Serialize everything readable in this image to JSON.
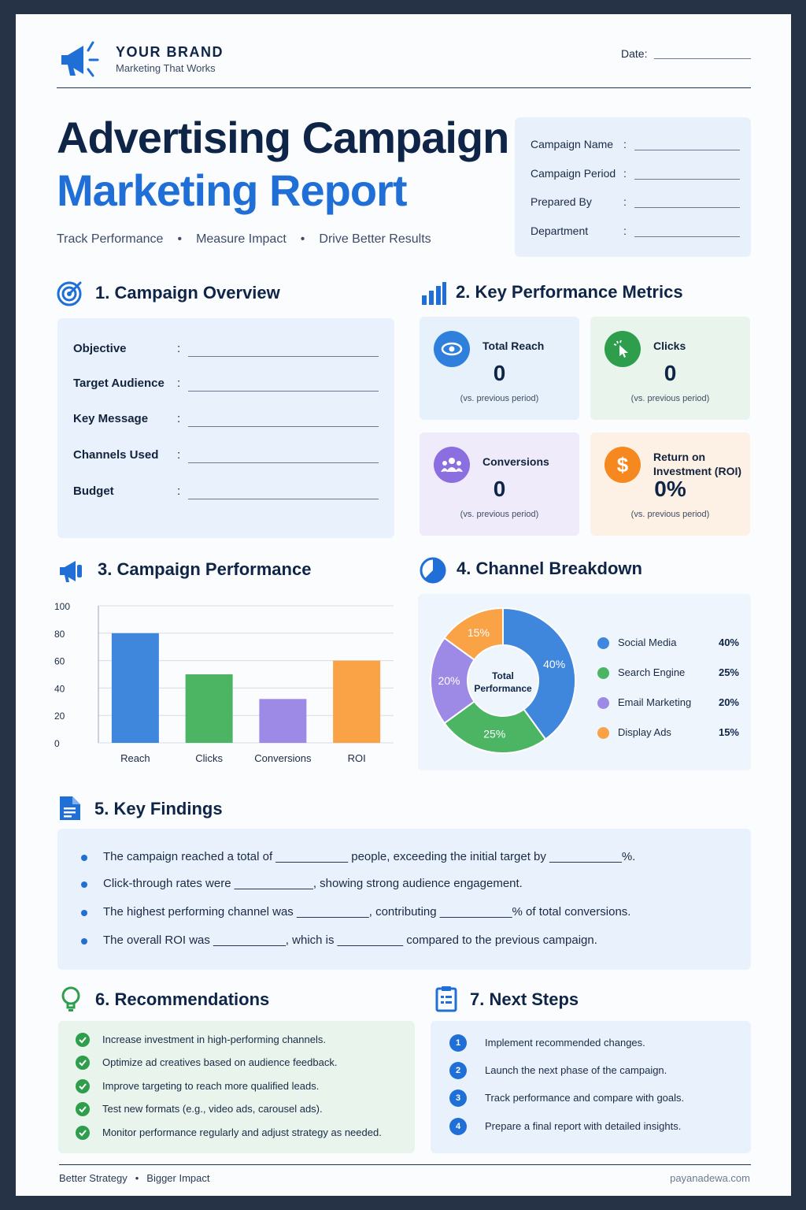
{
  "header": {
    "brand_name": "YOUR BRAND",
    "brand_tagline": "Marketing That Works",
    "date_label": "Date:"
  },
  "title": {
    "line1": "Advertising Campaign",
    "line2": "Marketing Report",
    "tagline": [
      "Track Performance",
      "Measure Impact",
      "Drive Better Results"
    ]
  },
  "info_box": {
    "fields": [
      "Campaign Name",
      "Campaign Period",
      "Prepared By",
      "Department"
    ]
  },
  "overview": {
    "title": "1. Campaign Overview",
    "fields": [
      "Objective",
      "Target Audience",
      "Key Message",
      "Channels Used",
      "Budget"
    ]
  },
  "metrics": {
    "title": "2. Key Performance Metrics",
    "items": [
      {
        "label": "Total Reach",
        "value": "0",
        "note": "(vs. previous period)",
        "color": "#2f80dd",
        "bg": "#e6f1fc",
        "icon": "eye-icon"
      },
      {
        "label": "Clicks",
        "value": "0",
        "note": "(vs. previous period)",
        "color": "#2e9e4d",
        "bg": "#e8f4ec",
        "icon": "cursor-click-icon"
      },
      {
        "label": "Conversions",
        "value": "0",
        "note": "(vs. previous period)",
        "color": "#8b6ee0",
        "bg": "#efebfb",
        "icon": "users-icon"
      },
      {
        "label": "Return on Investment (ROI)",
        "value": "0%",
        "note": "(vs. previous period)",
        "color": "#f5891f",
        "bg": "#fdf0e4",
        "icon": "dollar-icon"
      }
    ]
  },
  "performance": {
    "title": "3. Campaign Performance"
  },
  "channels": {
    "title": "4. Channel Breakdown",
    "center_label_1": "Total",
    "center_label_2": "Performance"
  },
  "chart_data": [
    {
      "type": "bar",
      "categories": [
        "Reach",
        "Clicks",
        "Conversions",
        "ROI"
      ],
      "values": [
        80,
        50,
        32,
        60
      ],
      "colors": [
        "#3f86dd",
        "#4cb563",
        "#9d8ae6",
        "#f9a246"
      ],
      "ylim": [
        0,
        100
      ],
      "yticks": [
        0,
        20,
        40,
        60,
        80,
        100
      ],
      "grid": true
    },
    {
      "type": "pie",
      "labels": [
        "Social Media",
        "Search Engine",
        "Email Marketing",
        "Display Ads"
      ],
      "values": [
        40,
        25,
        20,
        15
      ],
      "value_labels": [
        "40%",
        "25%",
        "20%",
        "15%"
      ],
      "colors": [
        "#3f86dd",
        "#4cb563",
        "#9d8ae6",
        "#f9a246"
      ],
      "legend": "right"
    }
  ],
  "findings": {
    "title": "5. Key Findings",
    "items": [
      "The campaign reached a total of ___________  people, exceeding the initial target by ___________%.",
      "Click-through rates were ____________, showing strong audience engagement.",
      "The highest performing channel was ___________, contributing ___________% of total conversions.",
      "The overall ROI was ___________, which is __________  compared to the previous campaign."
    ]
  },
  "recommendations": {
    "title": "6. Recommendations",
    "items": [
      "Increase investment in high-performing channels.",
      "Optimize ad creatives based on audience feedback.",
      "Improve targeting to reach more qualified leads.",
      "Test new formats (e.g., video ads, carousel ads).",
      "Monitor performance regularly and adjust strategy as needed."
    ]
  },
  "next_steps": {
    "title": "7. Next Steps",
    "items": [
      {
        "num": "1",
        "text": "Implement recommended changes."
      },
      {
        "num": "2",
        "text": "Launch the next phase of the campaign."
      },
      {
        "num": "3",
        "text": "Track performance and compare with goals."
      },
      {
        "num": "4",
        "text": "Prepare a final report with detailed insights."
      }
    ]
  },
  "footer": {
    "left": [
      "Better Strategy",
      "Bigger Impact"
    ],
    "right": "payanadewa.com"
  }
}
